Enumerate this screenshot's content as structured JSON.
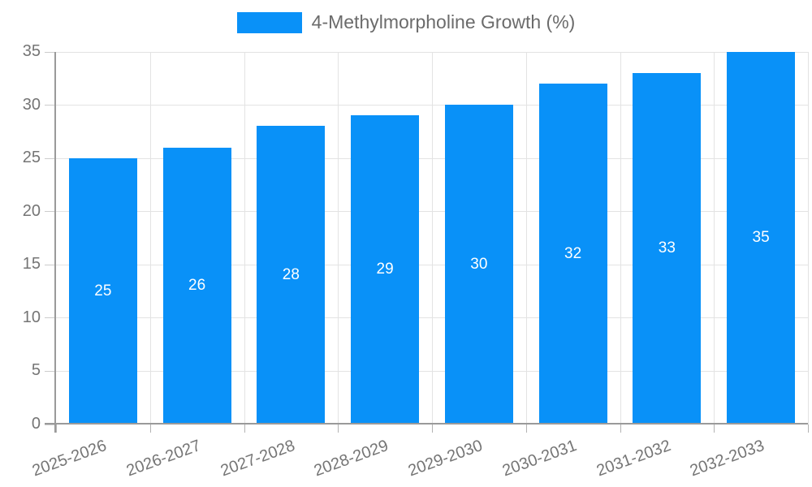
{
  "legend": {
    "label": "4-Methylmorpholine Growth (%)"
  },
  "chart_data": {
    "type": "bar",
    "title": "",
    "categories": [
      "2025-2026",
      "2026-2027",
      "2027-2028",
      "2028-2029",
      "2029-2030",
      "2030-2031",
      "2031-2032",
      "2032-2033"
    ],
    "values": [
      25,
      26,
      28,
      29,
      30,
      32,
      33,
      35
    ],
    "series_name": "4-Methylmorpholine Growth (%)",
    "xlabel": "",
    "ylabel": "",
    "ylim": [
      0,
      35
    ],
    "yticks": [
      0,
      5,
      10,
      15,
      20,
      25,
      30,
      35
    ],
    "grid": true,
    "legend_position": "top-center",
    "value_labels": "inside-center",
    "x_label_rotation_deg": -20,
    "bar_color": "#0991f8",
    "value_label_color": "#ffffff",
    "tick_label_color": "#757575",
    "grid_color": "#e3e3e3",
    "axis_color": "#9a9a9a",
    "background_color": "#ffffff"
  }
}
